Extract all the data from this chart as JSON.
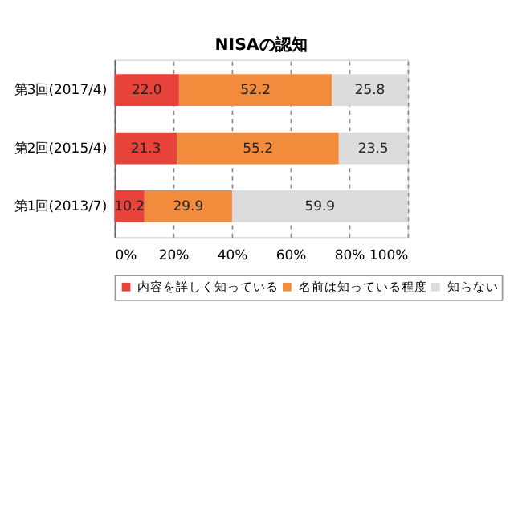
{
  "chart_data": {
    "type": "bar",
    "orientation": "horizontal",
    "stacked": true,
    "title": "NISAの認知",
    "categories": [
      "第3回(2017/4)",
      "第2回(2015/4)",
      "第1回(2013/7)"
    ],
    "series": [
      {
        "name": "内容を詳しく知っている",
        "color": "#e8433b",
        "values": [
          22.0,
          21.3,
          10.2
        ],
        "value_labels": [
          "22.0",
          "21.3",
          "10.2"
        ]
      },
      {
        "name": "名前は知っている程度",
        "color": "#f28c3c",
        "values": [
          52.2,
          55.2,
          29.9
        ],
        "value_labels": [
          "52.2",
          "55.2",
          "29.9"
        ]
      },
      {
        "name": "知らない",
        "color": "#dcdcdc",
        "values": [
          25.8,
          23.5,
          59.9
        ],
        "value_labels": [
          "25.8",
          "23.5",
          "59.9"
        ]
      }
    ],
    "xlim": [
      0,
      100
    ],
    "xticks": [
      {
        "value": 0,
        "label": "0%"
      },
      {
        "value": 20,
        "label": "20%"
      },
      {
        "value": 40,
        "label": "40%"
      },
      {
        "value": 60,
        "label": "60%"
      },
      {
        "value": 80,
        "label": "80%"
      },
      {
        "value": 100,
        "label": "100%"
      }
    ],
    "grid": "x",
    "legend": "bottom"
  }
}
